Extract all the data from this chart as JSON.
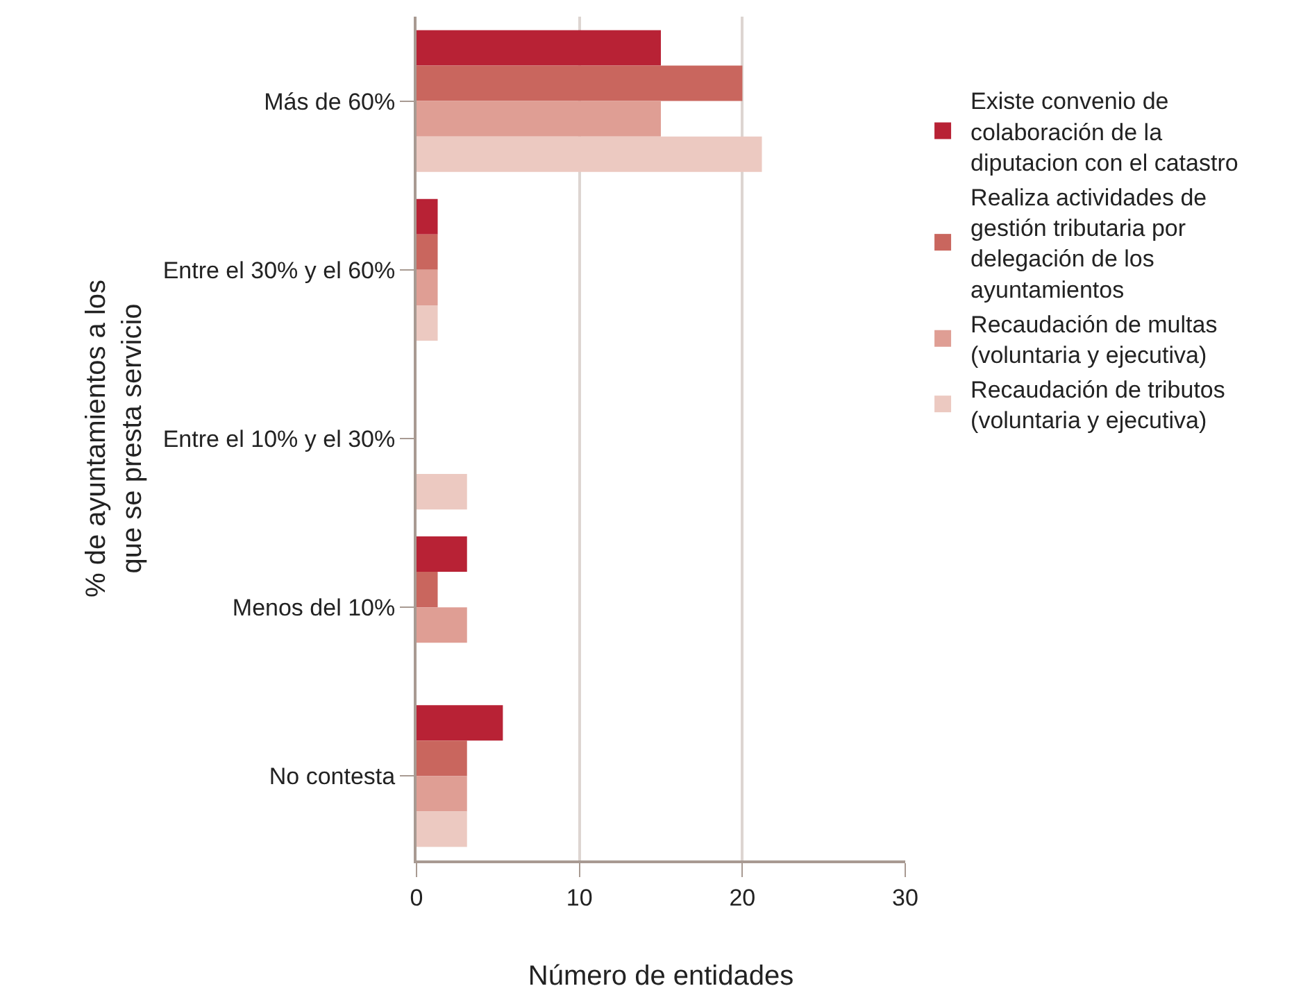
{
  "chart_data": {
    "type": "bar",
    "orientation": "horizontal",
    "xlabel": "Número de entidades",
    "ylabel": "% de ayuntamientos a los que se presta servicio",
    "categories": [
      "Más de 60%",
      "Entre el 30% y el 60%",
      "Entre el 10% y el 30%",
      "Menos del 10%",
      "No contesta"
    ],
    "series": [
      {
        "name": "Existe convenio de colaboración de la diputacion con el catastro",
        "color": "#b82235",
        "values": [
          15,
          1.3,
          0,
          3.1,
          5.3
        ]
      },
      {
        "name": "Realiza actividades de gestión tributaria por delegación de los ayuntamientos",
        "color": "#c9665e",
        "values": [
          20,
          1.3,
          0,
          1.3,
          3.1
        ]
      },
      {
        "name": "Recaudación de multas (voluntaria y ejecutiva)",
        "color": "#df9e94",
        "values": [
          15,
          1.3,
          0,
          3.1,
          3.1
        ]
      },
      {
        "name": "Recaudación de tributos (voluntaria y ejecutiva)",
        "color": "#ecc9c1",
        "values": [
          21.2,
          1.3,
          3.1,
          0,
          3.1
        ]
      }
    ],
    "xlim": [
      0,
      30
    ],
    "xticks": [
      0,
      10,
      20,
      30
    ],
    "grid": "x",
    "legend": "right"
  }
}
